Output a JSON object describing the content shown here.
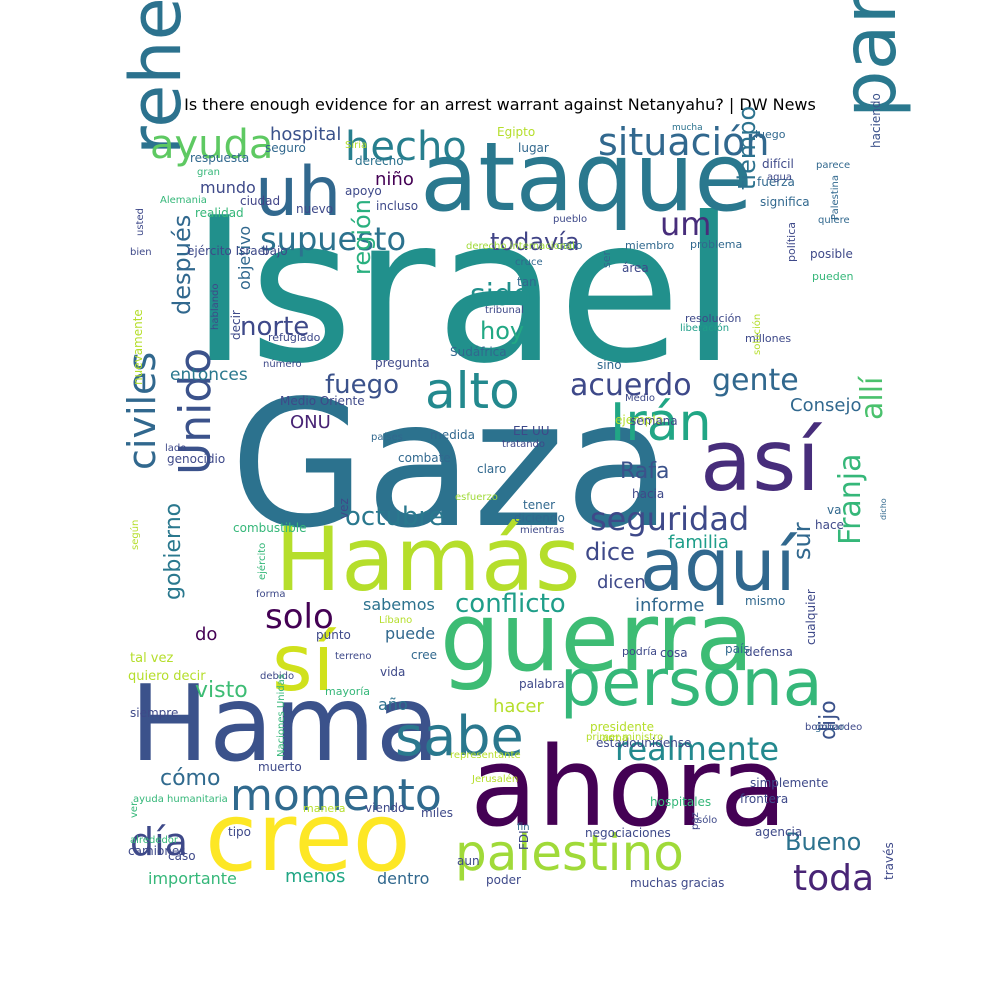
{
  "title": "Is there enough evidence for an arrest warrant against Netanyahu? | DW News",
  "words": [
    {
      "text": "Israel",
      "color": "#21908c"
    },
    {
      "text": "Gaza",
      "color": "#2c728e"
    },
    {
      "text": "ataque",
      "color": "#2a788e"
    },
    {
      "text": "Hamás",
      "color": "#b5de2b"
    },
    {
      "text": "guerra",
      "color": "#3dbc74"
    },
    {
      "text": "ahora",
      "color": "#440154"
    },
    {
      "text": "Hama",
      "color": "#3b528b"
    },
    {
      "text": "creo",
      "color": "#fde725"
    },
    {
      "text": "persona",
      "color": "#35b779"
    },
    {
      "text": "así",
      "color": "#472d7b"
    },
    {
      "text": "aquí",
      "color": "#31688e"
    },
    {
      "text": "sí",
      "color": "#d0e11c"
    },
    {
      "text": "parte",
      "color": "#2a788e"
    },
    {
      "text": "rehenes",
      "color": "#2c728e"
    },
    {
      "text": "uh",
      "color": "#31688e"
    },
    {
      "text": "alto",
      "color": "#23898e"
    },
    {
      "text": "Irán",
      "color": "#21a685"
    },
    {
      "text": "hecho",
      "color": "#277f8e"
    },
    {
      "text": "situación",
      "color": "#31688e"
    },
    {
      "text": "ayuda",
      "color": "#5ec962"
    },
    {
      "text": "supuesto",
      "color": "#2c728e"
    },
    {
      "text": "momento",
      "color": "#306a8e"
    },
    {
      "text": "palestino",
      "color": "#a0da39"
    },
    {
      "text": "sabe",
      "color": "#2a788e"
    },
    {
      "text": "Unido",
      "color": "#3b528b"
    },
    {
      "text": "civiles",
      "color": "#31688e"
    },
    {
      "text": "seguridad",
      "color": "#3e4989"
    },
    {
      "text": "realmente",
      "color": "#23898e"
    },
    {
      "text": "acuerdo",
      "color": "#3e4989"
    },
    {
      "text": "gente",
      "color": "#31688e"
    },
    {
      "text": "Franja",
      "color": "#35b779"
    },
    {
      "text": "allí",
      "color": "#4ac16d"
    },
    {
      "text": "toda",
      "color": "#482475"
    },
    {
      "text": "día",
      "color": "#3e4989"
    },
    {
      "text": "solo",
      "color": "#440154"
    },
    {
      "text": "conflicto",
      "color": "#1f9e89"
    },
    {
      "text": "octubre",
      "color": "#2a788e"
    },
    {
      "text": "fuego",
      "color": "#3b528b"
    },
    {
      "text": "sido",
      "color": "#21908c"
    },
    {
      "text": "hoy",
      "color": "#22a884"
    },
    {
      "text": "norte",
      "color": "#3e4989"
    },
    {
      "text": "todavía",
      "color": "#414487"
    },
    {
      "text": "um",
      "color": "#472d7b"
    },
    {
      "text": "tiempo",
      "color": "#2c728e"
    },
    {
      "text": "región",
      "color": "#2ab07f"
    },
    {
      "text": "dice",
      "color": "#3e4989"
    },
    {
      "text": "sur",
      "color": "#31688e"
    },
    {
      "text": "Bueno",
      "color": "#2c728e"
    },
    {
      "text": "Rafa",
      "color": "#3b528b"
    },
    {
      "text": "después",
      "color": "#31688e"
    },
    {
      "text": "gobierno",
      "color": "#2a788e"
    },
    {
      "text": "dijo",
      "color": "#3b528b"
    },
    {
      "text": "cómo",
      "color": "#306a8e"
    },
    {
      "text": "visto",
      "color": "#3dbc74"
    },
    {
      "text": "hospital",
      "color": "#3b528b"
    },
    {
      "text": "niño",
      "color": "#440154"
    },
    {
      "text": "Consejo",
      "color": "#31688e"
    },
    {
      "text": "ONU",
      "color": "#482475"
    },
    {
      "text": "familia",
      "color": "#1f9e89"
    },
    {
      "text": "informe",
      "color": "#31688e"
    },
    {
      "text": "dicen",
      "color": "#3e4989"
    },
    {
      "text": "sabemos",
      "color": "#2c728e"
    },
    {
      "text": "puede",
      "color": "#31688e"
    },
    {
      "text": "hacer",
      "color": "#b5de2b"
    },
    {
      "text": "menos",
      "color": "#21a685"
    },
    {
      "text": "importante",
      "color": "#35b779"
    },
    {
      "text": "dentro",
      "color": "#31688e"
    },
    {
      "text": "entonces",
      "color": "#2a788e"
    },
    {
      "text": "mundo",
      "color": "#3e4989"
    },
    {
      "text": "objetivo",
      "color": "#31688e"
    },
    {
      "text": "do",
      "color": "#440154"
    },
    {
      "text": "año",
      "color": "#2c728e"
    },
    {
      "text": "respuesta",
      "color": "#31688e"
    },
    {
      "text": "ciudad",
      "color": "#414487"
    },
    {
      "text": "seguro",
      "color": "#31688e"
    },
    {
      "text": "derecho",
      "color": "#2c728e"
    },
    {
      "text": "Egipto",
      "color": "#b5de2b"
    },
    {
      "text": "lugar",
      "color": "#31688e"
    },
    {
      "text": "mucha",
      "color": "#2c728e"
    },
    {
      "text": "luego",
      "color": "#31688e"
    },
    {
      "text": "difícil",
      "color": "#3e4989"
    },
    {
      "text": "parece",
      "color": "#31688e"
    },
    {
      "text": "haciendo",
      "color": "#3b528b"
    },
    {
      "text": "fuerza",
      "color": "#31688e"
    },
    {
      "text": "significa",
      "color": "#31688e"
    },
    {
      "text": "quiere",
      "color": "#31688e"
    },
    {
      "text": "posible",
      "color": "#3e4989"
    },
    {
      "text": "pueden",
      "color": "#35b779"
    },
    {
      "text": "política",
      "color": "#3e4989"
    },
    {
      "text": "Palestina",
      "color": "#31688e"
    },
    {
      "text": "millones",
      "color": "#3e4989"
    },
    {
      "text": "liberación",
      "color": "#1f9e89"
    },
    {
      "text": "resolución",
      "color": "#3e4989"
    },
    {
      "text": "solución",
      "color": "#b5de2b"
    },
    {
      "text": "problema",
      "color": "#31688e"
    },
    {
      "text": "área",
      "color": "#3e4989"
    },
    {
      "text": "miembro",
      "color": "#31688e"
    },
    {
      "text": "cabo",
      "color": "#31688e"
    },
    {
      "text": "derecho internacional",
      "color": "#a0da39"
    },
    {
      "text": "pueblo",
      "color": "#3e4989"
    },
    {
      "text": "cruce",
      "color": "#31688e"
    },
    {
      "text": "tan",
      "color": "#31688e"
    },
    {
      "text": "tribunal",
      "color": "#3e4989"
    },
    {
      "text": "ser",
      "color": "#31688e"
    },
    {
      "text": "sino",
      "color": "#31688e"
    },
    {
      "text": "Sudáfrica",
      "color": "#31688e"
    },
    {
      "text": "pregunta",
      "color": "#3e4989"
    },
    {
      "text": "Medio",
      "color": "#3e4989"
    },
    {
      "text": "ejemplo",
      "color": "#b5de2b"
    },
    {
      "text": "EE UU",
      "color": "#3e4989"
    },
    {
      "text": "tratando",
      "color": "#3e4989"
    },
    {
      "text": "medida",
      "color": "#31688e"
    },
    {
      "text": "semana",
      "color": "#3e4989"
    },
    {
      "text": "combate",
      "color": "#31688e"
    },
    {
      "text": "claro",
      "color": "#31688e"
    },
    {
      "text": "países",
      "color": "#31688e"
    },
    {
      "text": "esfuerzo",
      "color": "#a0da39"
    },
    {
      "text": "tener",
      "color": "#31688e"
    },
    {
      "text": "hacia",
      "color": "#3e4989"
    },
    {
      "text": "diciendo",
      "color": "#31688e"
    },
    {
      "text": "mientras",
      "color": "#3e4989"
    },
    {
      "text": "fin",
      "color": "#31688e"
    },
    {
      "text": "va",
      "color": "#31688e"
    },
    {
      "text": "hace",
      "color": "#3e4989"
    },
    {
      "text": "dicho",
      "color": "#31688e"
    },
    {
      "text": "mismo",
      "color": "#31688e"
    },
    {
      "text": "cualquier",
      "color": "#3e4989"
    },
    {
      "text": "defensa",
      "color": "#3e4989"
    },
    {
      "text": "país",
      "color": "#31688e"
    },
    {
      "text": "cosa",
      "color": "#3e4989"
    },
    {
      "text": "podría",
      "color": "#3e4989"
    },
    {
      "text": "Líbano",
      "color": "#b5de2b"
    },
    {
      "text": "cree",
      "color": "#31688e"
    },
    {
      "text": "vida",
      "color": "#3e4989"
    },
    {
      "text": "palabra",
      "color": "#3e4989"
    },
    {
      "text": "punto",
      "color": "#3e4989"
    },
    {
      "text": "terreno",
      "color": "#3e4989"
    },
    {
      "text": "debido",
      "color": "#3e4989"
    },
    {
      "text": "mayoría",
      "color": "#35b779"
    },
    {
      "text": "tal vez",
      "color": "#b5de2b"
    },
    {
      "text": "quiero decir",
      "color": "#b5de2b"
    },
    {
      "text": "presidente",
      "color": "#b5de2b"
    },
    {
      "text": "estadounidense",
      "color": "#3e4989"
    },
    {
      "text": "grupo",
      "color": "#31688e"
    },
    {
      "text": "bombardeo",
      "color": "#3e4989"
    },
    {
      "text": "representante",
      "color": "#b5de2b"
    },
    {
      "text": "Jerusalén",
      "color": "#b5de2b"
    },
    {
      "text": "FDI",
      "color": "#3e4989"
    },
    {
      "text": "simplemente",
      "color": "#3e4989"
    },
    {
      "text": "frontera",
      "color": "#3e4989"
    },
    {
      "text": "sólo",
      "color": "#3e4989"
    },
    {
      "text": "agencia",
      "color": "#3e4989"
    },
    {
      "text": "través",
      "color": "#3e4989"
    },
    {
      "text": "hospitales",
      "color": "#35b779"
    },
    {
      "text": "paz",
      "color": "#3e4989"
    },
    {
      "text": "negociaciones",
      "color": "#3e4989"
    },
    {
      "text": "aun",
      "color": "#3e4989"
    },
    {
      "text": "miles",
      "color": "#3e4989"
    },
    {
      "text": "viendo",
      "color": "#3e4989"
    },
    {
      "text": "manera",
      "color": "#b5de2b"
    },
    {
      "text": "muerto",
      "color": "#3e4989"
    },
    {
      "text": "Naciones Unidas",
      "color": "#35b779"
    },
    {
      "text": "siempre",
      "color": "#3e4989"
    },
    {
      "text": "ver",
      "color": "#35b779"
    },
    {
      "text": "ayuda humanitaria",
      "color": "#35b779"
    },
    {
      "text": "alrededor",
      "color": "#35b779"
    },
    {
      "text": "camiones",
      "color": "#3e4989"
    },
    {
      "text": "caso",
      "color": "#3e4989"
    },
    {
      "text": "tipo",
      "color": "#3e4989"
    },
    {
      "text": "poder",
      "color": "#3e4989"
    },
    {
      "text": "muchas gracias",
      "color": "#3e4989"
    },
    {
      "text": "primer ministro",
      "color": "#b5de2b"
    },
    {
      "text": "arma",
      "color": "#b5de2b"
    },
    {
      "text": "forma",
      "color": "#3e4989"
    },
    {
      "text": "ejército",
      "color": "#35b779"
    },
    {
      "text": "según",
      "color": "#b5de2b"
    },
    {
      "text": "combustible",
      "color": "#35b779"
    },
    {
      "text": "vez",
      "color": "#3e4989"
    },
    {
      "text": "Medio Oriente",
      "color": "#3e4989"
    },
    {
      "text": "genocidio",
      "color": "#3e4989"
    },
    {
      "text": "lado",
      "color": "#3e4989"
    },
    {
      "text": "número",
      "color": "#3e4989"
    },
    {
      "text": "refugiado",
      "color": "#3e4989"
    },
    {
      "text": "decir",
      "color": "#3e4989"
    },
    {
      "text": "hablando",
      "color": "#3e4989"
    },
    {
      "text": "nuevamente",
      "color": "#b5de2b"
    },
    {
      "text": "ejército Israel",
      "color": "#3e4989"
    },
    {
      "text": "bien",
      "color": "#3e4989"
    },
    {
      "text": "bajo",
      "color": "#3e4989"
    },
    {
      "text": "usted",
      "color": "#3e4989"
    },
    {
      "text": "realidad",
      "color": "#35b779"
    },
    {
      "text": "Alemania",
      "color": "#35b779"
    },
    {
      "text": "gran",
      "color": "#35b779"
    },
    {
      "text": "nuevo",
      "color": "#3e4989"
    },
    {
      "text": "incluso",
      "color": "#3e4989"
    },
    {
      "text": "apoyo",
      "color": "#3e4989"
    },
    {
      "text": "Siria",
      "color": "#b5de2b"
    },
    {
      "text": "agua",
      "color": "#3e4989"
    },
    {
      "text": "DW",
      "color": "#3e4989"
    }
  ]
}
